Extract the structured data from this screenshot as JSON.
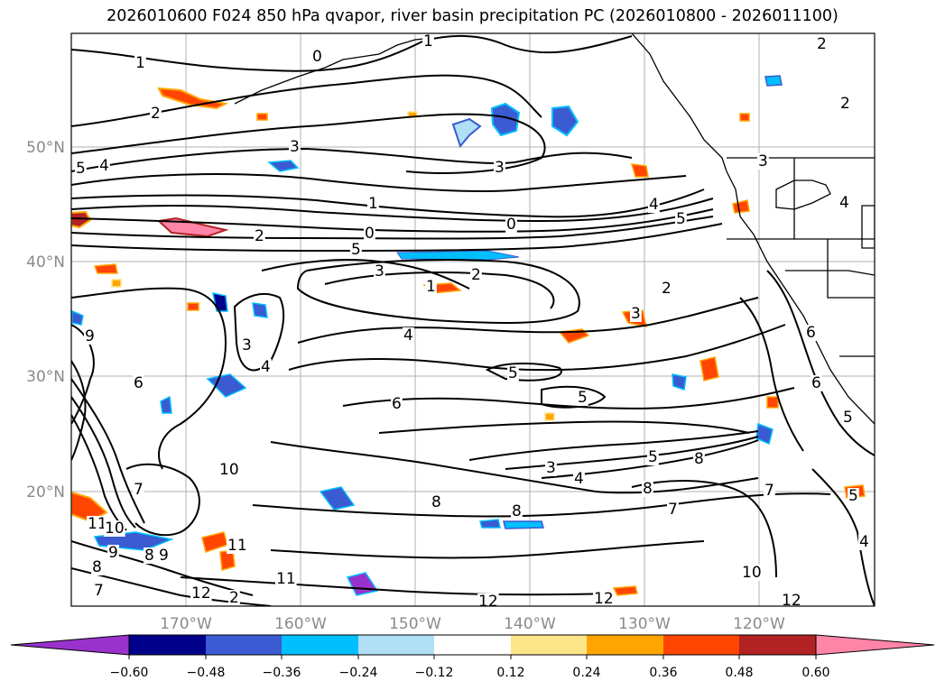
{
  "title": "2026010600 F024 850 hPa qvapor, river basin precipitation PC (2026010800 - 2026011100)",
  "map": {
    "lat_labels": [
      "50°N",
      "40°N",
      "30°N",
      "20°N"
    ],
    "lon_labels": [
      "170°W",
      "160°W",
      "150°W",
      "140°W",
      "130°W",
      "120°W"
    ],
    "contour_labels": [
      "2",
      "1",
      "0",
      "2",
      "1",
      "2",
      "3",
      "3",
      "4",
      "5",
      "1",
      "0",
      "2",
      "0",
      "5",
      "3",
      "2",
      "1",
      "4",
      "3",
      "4",
      "4",
      "5",
      "3",
      "2",
      "3",
      "4",
      "5",
      "6",
      "6",
      "5",
      "5",
      "7",
      "8",
      "8",
      "3",
      "4",
      "7",
      "8",
      "8",
      "10",
      "11",
      "11",
      "12",
      "12",
      "12",
      "10",
      "12",
      "9",
      "8",
      "7",
      "7",
      "11",
      "9",
      "8",
      "5",
      "6",
      "6",
      "5",
      "4",
      "2",
      "9",
      "10"
    ]
  },
  "colorbar": {
    "ticks": [
      "−0.60",
      "−0.48",
      "−0.36",
      "−0.24",
      "−0.12",
      "0.12",
      "0.24",
      "0.36",
      "0.48",
      "0.60"
    ],
    "colors": [
      "#9932cc",
      "#00008b",
      "#3a5bd1",
      "#00bfff",
      "#b0e0f6",
      "#ffffff",
      "#fde68a",
      "#ffa500",
      "#ff4500",
      "#b22222",
      "#ff85a8"
    ]
  }
}
